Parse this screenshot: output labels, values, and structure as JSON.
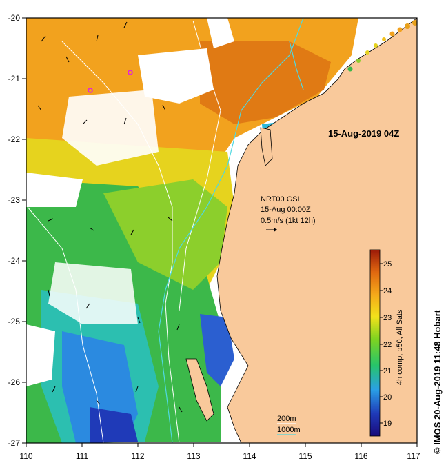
{
  "map": {
    "date_label": "15-Aug-2019 04Z",
    "current_info": [
      "NRT00 GSL",
      "15-Aug 00:00Z",
      "0.5m/s (1kt 12h)"
    ],
    "depth_legend": [
      "200m",
      "1000m"
    ],
    "credit": "© IMOS 20-Aug-2019 11:48 Hobart",
    "x_ticks": [
      "110",
      "111",
      "112",
      "113",
      "114",
      "115",
      "116",
      "117"
    ],
    "y_ticks": [
      "-20",
      "-21",
      "-22",
      "-23",
      "-24",
      "-25",
      "-26",
      "-27"
    ],
    "lon_range": [
      110,
      117
    ],
    "lat_range": [
      -27,
      -20
    ],
    "land_color": "#f9c99b",
    "contour_color": "#ffffff",
    "track_color": "#4fd8e0"
  },
  "colorbar": {
    "title": "4h comp, p50, All Sats",
    "ticks": [
      "19",
      "20",
      "21",
      "22",
      "23",
      "24",
      "25"
    ],
    "range": [
      18.5,
      25.5
    ]
  }
}
